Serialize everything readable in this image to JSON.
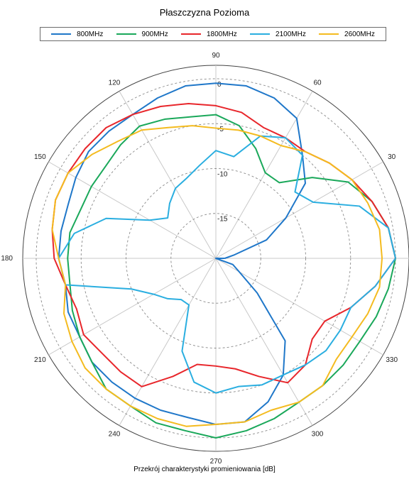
{
  "chart_data": {
    "type": "polar-line",
    "title": "Płaszczyzna Pozioma",
    "xlabel": "Przekrój charakterystyki promieniowania [dB]",
    "angle_ticks": [
      0,
      30,
      60,
      90,
      120,
      150,
      180,
      210,
      240,
      270,
      300,
      330
    ],
    "angle_tick_labels": [
      "",
      "30",
      "60",
      "90",
      "120",
      "150",
      "180",
      "210",
      "240",
      "270",
      "300",
      "330"
    ],
    "radial_ticks": [
      0,
      -5,
      -10,
      -15
    ],
    "radial_tick_labels": [
      "0",
      "-5",
      "-10",
      "-15"
    ],
    "rlim": [
      -20,
      1.5
    ],
    "grid": true,
    "legend_position": "top",
    "angle_unit": "degrees",
    "series": [
      {
        "name": "800MHz",
        "color": "#1f77c9",
        "theta": [
          0,
          10,
          20,
          30,
          40,
          50,
          60,
          70,
          80,
          90,
          100,
          110,
          120,
          130,
          140,
          150,
          160,
          170,
          180,
          190,
          200,
          210,
          220,
          230,
          240,
          250,
          260,
          270,
          280,
          290,
          300,
          310,
          320,
          330,
          340,
          350
        ],
        "r": [
          -19,
          -18,
          -14,
          -11,
          -7,
          -5,
          -2,
          -1,
          -0.5,
          -0.5,
          -0.5,
          -1,
          -1.5,
          -1.5,
          -1.5,
          -2,
          -2.5,
          -2.5,
          -2.5,
          -3,
          -2.5,
          -2.5,
          -2,
          -2,
          -2,
          -2,
          -2,
          -1.5,
          -1.5,
          -3,
          -5,
          -8,
          -14,
          -17,
          -18,
          -20
        ]
      },
      {
        "name": "900MHz",
        "color": "#1aa85a",
        "theta": [
          0,
          10,
          20,
          30,
          40,
          50,
          60,
          70,
          80,
          90,
          100,
          110,
          120,
          130,
          140,
          150,
          160,
          170,
          180,
          190,
          200,
          210,
          220,
          230,
          240,
          250,
          260,
          270,
          280,
          290,
          300,
          310,
          320,
          330,
          340,
          350
        ],
        "r": [
          0,
          -0.5,
          -1.5,
          -3,
          -6,
          -9,
          -9,
          -7,
          -5,
          -4,
          -4,
          -3.5,
          -3,
          -3.5,
          -4,
          -4,
          -4,
          -3.5,
          -3.5,
          -3.5,
          -3,
          -2.5,
          -2,
          -1,
          -1,
          -0.5,
          -0.5,
          0,
          -0.5,
          -1,
          -1.5,
          -1.5,
          -1.5,
          -1.5,
          -1,
          -0.5
        ]
      },
      {
        "name": "1800MHz",
        "color": "#e8262b",
        "theta": [
          0,
          10,
          20,
          30,
          40,
          50,
          60,
          70,
          80,
          90,
          100,
          110,
          120,
          130,
          140,
          150,
          160,
          170,
          180,
          190,
          200,
          210,
          220,
          230,
          240,
          250,
          260,
          270,
          280,
          290,
          300,
          310,
          320,
          330,
          340,
          350
        ],
        "r": [
          0,
          -0.5,
          -1.5,
          -2.5,
          -3.5,
          -4.5,
          -4.5,
          -4.5,
          -3.5,
          -3,
          -2.5,
          -2,
          -1.5,
          -1,
          -1,
          -1,
          -1,
          -1.5,
          -2,
          -3,
          -3.5,
          -3,
          -3.5,
          -3.5,
          -3.5,
          -6,
          -8,
          -8,
          -7.5,
          -6,
          -4,
          -4.5,
          -6,
          -6,
          -4,
          -2
        ]
      },
      {
        "name": "2100MHz",
        "color": "#2aaee0",
        "theta": [
          0,
          10,
          20,
          30,
          40,
          50,
          60,
          70,
          80,
          90,
          100,
          110,
          120,
          130,
          140,
          150,
          160,
          170,
          180,
          190,
          200,
          210,
          220,
          230,
          240,
          250,
          260,
          270,
          280,
          290,
          300,
          310,
          320,
          330,
          340,
          350
        ],
        "r": [
          0,
          -0.5,
          -3,
          -7.5,
          -8.5,
          -5,
          -4.5,
          -5.5,
          -8.5,
          -8,
          -9.5,
          -10.5,
          -11,
          -12,
          -13,
          -11.5,
          -7,
          -4,
          -2.5,
          -3,
          -10,
          -12,
          -13,
          -14,
          -14,
          -9,
          -6,
          -5,
          -5.5,
          -5,
          -5,
          -4.5,
          -4,
          -4,
          -4,
          -2
        ]
      },
      {
        "name": "2600MHz",
        "color": "#f4bb1f",
        "theta": [
          0,
          10,
          20,
          30,
          40,
          50,
          60,
          70,
          80,
          90,
          100,
          110,
          120,
          130,
          140,
          150,
          160,
          170,
          180,
          190,
          200,
          210,
          220,
          230,
          240,
          250,
          260,
          270,
          280,
          290,
          300,
          310,
          320,
          330,
          340,
          350
        ],
        "r": [
          -1.5,
          -1.5,
          -2,
          -2.5,
          -3.5,
          -4.5,
          -5.5,
          -5.5,
          -5.5,
          -5.5,
          -5,
          -4.5,
          -3.5,
          -3,
          -2,
          -1,
          -1,
          -1.5,
          -2.5,
          -3,
          -2,
          -1.5,
          -1,
          -1,
          -1,
          -1,
          -1,
          -1.5,
          -1.5,
          -2,
          -1.5,
          -1.5,
          -2.5,
          -2.5,
          -2,
          -1.5
        ]
      }
    ]
  }
}
